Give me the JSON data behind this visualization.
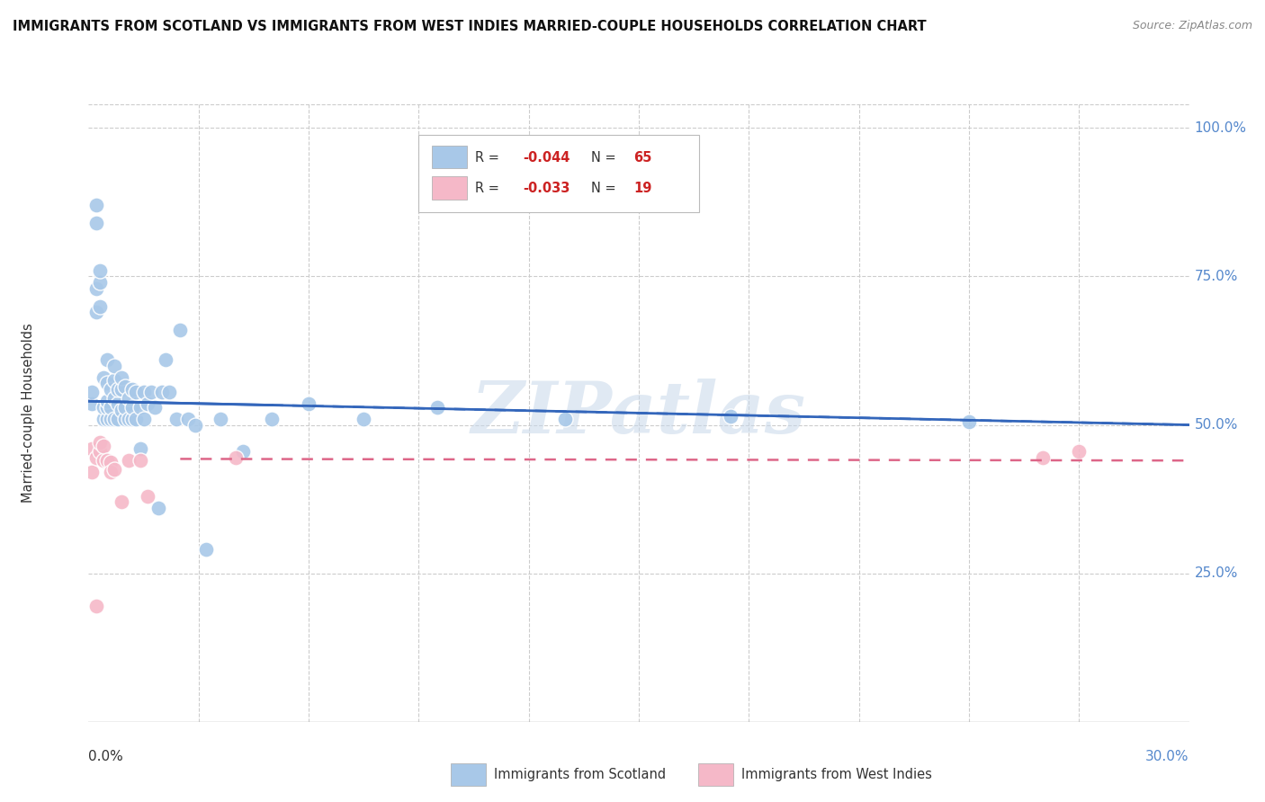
{
  "title": "IMMIGRANTS FROM SCOTLAND VS IMMIGRANTS FROM WEST INDIES MARRIED-COUPLE HOUSEHOLDS CORRELATION CHART",
  "source": "Source: ZipAtlas.com",
  "ylabel": "Married-couple Households",
  "scotland_color": "#a8c8e8",
  "westindies_color": "#f5b8c8",
  "scotland_line_color": "#3366bb",
  "westindies_line_color": "#dd6688",
  "right_axis_color": "#5588cc",
  "watermark": "ZIPatlas",
  "background_color": "#ffffff",
  "grid_color": "#cccccc",
  "grid_style": "dashed",
  "scot_x": [
    0.001,
    0.001,
    0.002,
    0.002,
    0.002,
    0.002,
    0.003,
    0.003,
    0.003,
    0.004,
    0.004,
    0.004,
    0.005,
    0.005,
    0.005,
    0.005,
    0.005,
    0.006,
    0.006,
    0.006,
    0.007,
    0.007,
    0.007,
    0.007,
    0.008,
    0.008,
    0.008,
    0.009,
    0.009,
    0.009,
    0.01,
    0.01,
    0.01,
    0.011,
    0.011,
    0.012,
    0.012,
    0.012,
    0.013,
    0.013,
    0.014,
    0.014,
    0.015,
    0.015,
    0.016,
    0.017,
    0.018,
    0.019,
    0.02,
    0.021,
    0.022,
    0.024,
    0.025,
    0.027,
    0.029,
    0.032,
    0.036,
    0.042,
    0.05,
    0.06,
    0.075,
    0.095,
    0.13,
    0.175,
    0.24
  ],
  "scot_y": [
    0.535,
    0.555,
    0.69,
    0.73,
    0.84,
    0.87,
    0.74,
    0.76,
    0.7,
    0.51,
    0.53,
    0.58,
    0.51,
    0.53,
    0.54,
    0.57,
    0.61,
    0.51,
    0.53,
    0.56,
    0.51,
    0.545,
    0.575,
    0.6,
    0.51,
    0.535,
    0.56,
    0.525,
    0.56,
    0.58,
    0.51,
    0.53,
    0.565,
    0.51,
    0.545,
    0.51,
    0.53,
    0.56,
    0.51,
    0.555,
    0.46,
    0.53,
    0.51,
    0.555,
    0.535,
    0.555,
    0.53,
    0.36,
    0.555,
    0.61,
    0.555,
    0.51,
    0.66,
    0.51,
    0.5,
    0.29,
    0.51,
    0.455,
    0.51,
    0.535,
    0.51,
    0.53,
    0.51,
    0.515,
    0.505
  ],
  "wi_x": [
    0.001,
    0.001,
    0.002,
    0.002,
    0.003,
    0.003,
    0.004,
    0.004,
    0.005,
    0.006,
    0.006,
    0.007,
    0.009,
    0.011,
    0.014,
    0.016,
    0.04,
    0.26,
    0.27
  ],
  "wi_y": [
    0.46,
    0.42,
    0.445,
    0.195,
    0.455,
    0.47,
    0.44,
    0.465,
    0.44,
    0.438,
    0.42,
    0.425,
    0.37,
    0.44,
    0.44,
    0.38,
    0.445,
    0.445,
    0.455
  ],
  "x_min": 0.0,
  "x_max": 0.3,
  "y_min": 0.0,
  "y_max": 1.04,
  "ytick_positions": [
    0.25,
    0.5,
    0.75,
    1.0
  ],
  "ytick_labels": [
    "25.0%",
    "50.0%",
    "75.0%",
    "100.0%"
  ],
  "xtick_positions": [
    0.03,
    0.06,
    0.09,
    0.12,
    0.15,
    0.18,
    0.21,
    0.24,
    0.27
  ],
  "legend_R_scot": "-0.044",
  "legend_N_scot": "65",
  "legend_R_wi": "-0.033",
  "legend_N_wi": "19"
}
